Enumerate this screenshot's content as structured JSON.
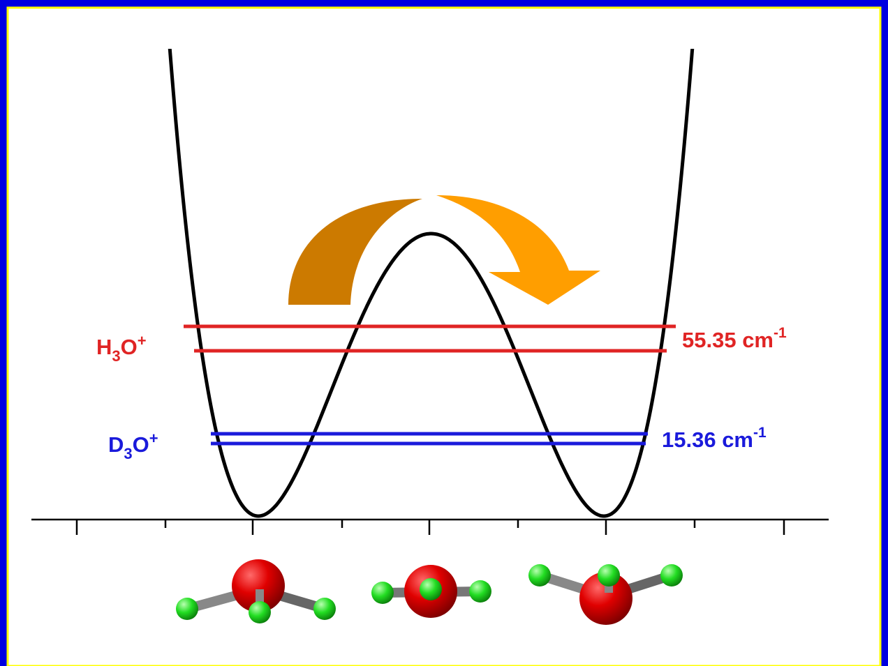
{
  "levels": [
    {
      "species": {
        "element": "H",
        "count": "3",
        "rest": "O",
        "charge": "+"
      },
      "splitting": {
        "number": "55.35 cm",
        "exponent": "-1"
      }
    },
    {
      "species": {
        "element": "D",
        "count": "3",
        "rest": "O",
        "charge": "+"
      },
      "splitting": {
        "number": "15.36 cm",
        "exponent": "-1"
      }
    }
  ]
}
